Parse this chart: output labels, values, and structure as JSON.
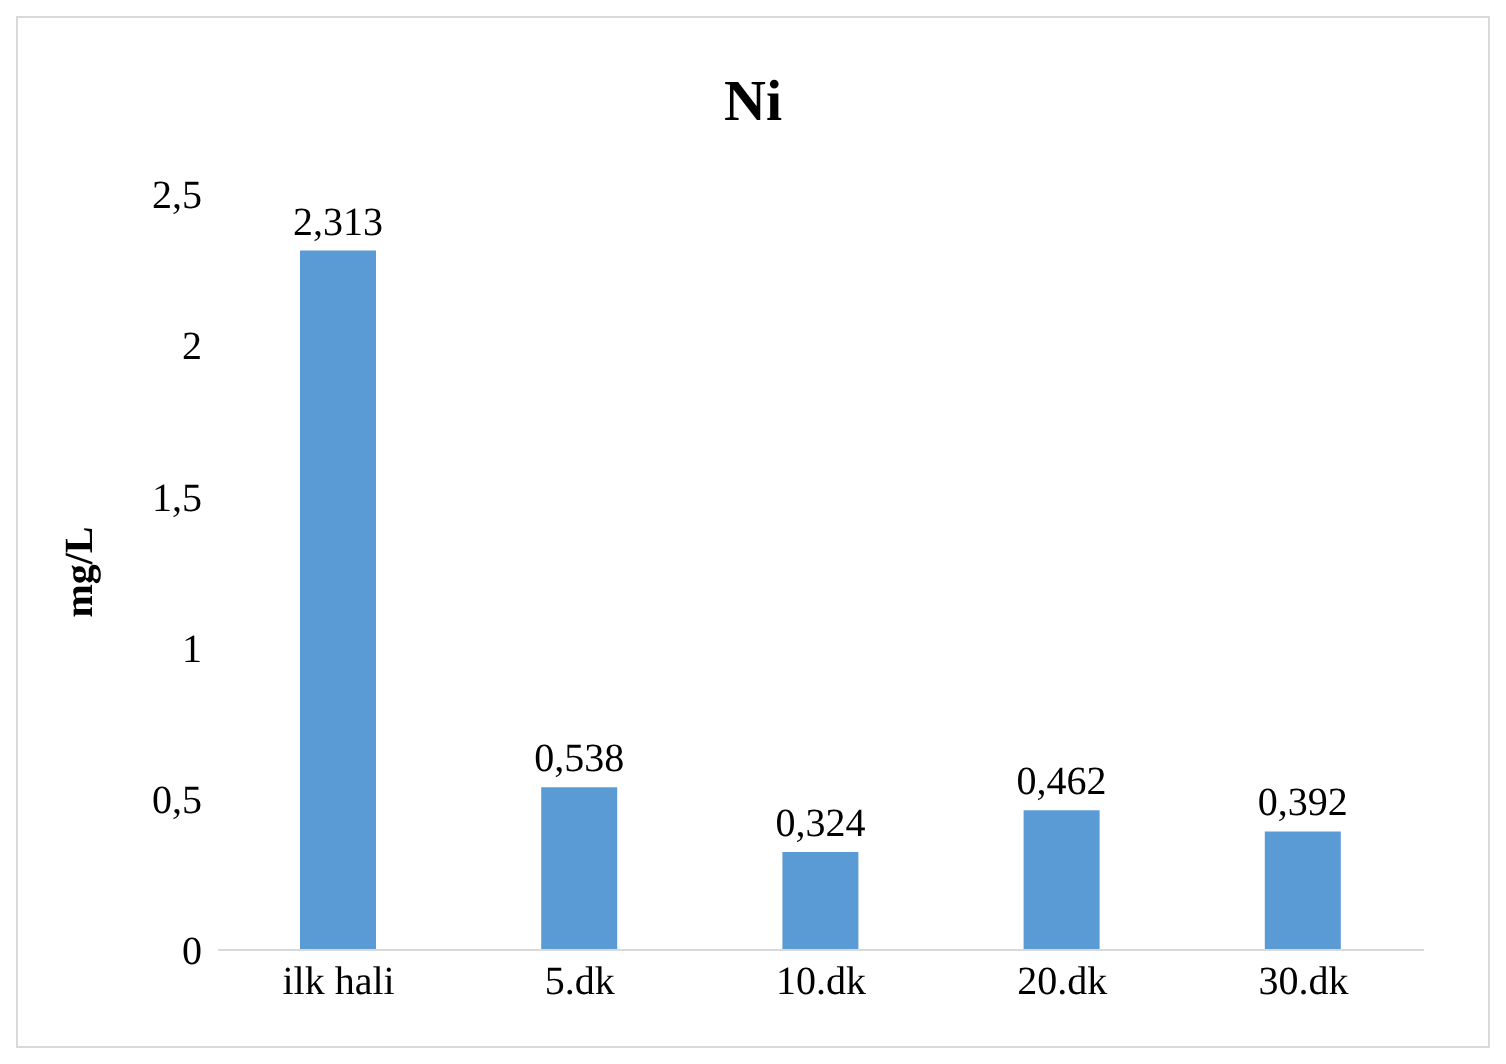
{
  "chart_data": {
    "type": "bar",
    "title": "Ni",
    "ylabel": "mg/L",
    "categories": [
      "ilk hali",
      "5.dk",
      "10.dk",
      "20.dk",
      "30.dk"
    ],
    "values": [
      2.313,
      0.538,
      0.324,
      0.462,
      0.392
    ],
    "value_labels": [
      "2,313",
      "0,538",
      "0,324",
      "0,462",
      "0,392"
    ],
    "color": "#5b9bd5",
    "ylim": [
      0,
      2.5
    ],
    "yticks": [
      {
        "value": 0,
        "label": "0"
      },
      {
        "value": 0.5,
        "label": "0,5"
      },
      {
        "value": 1,
        "label": "1"
      },
      {
        "value": 1.5,
        "label": "1,5"
      },
      {
        "value": 2,
        "label": "2"
      },
      {
        "value": 2.5,
        "label": "2,5"
      }
    ],
    "grid": false,
    "legend": false
  }
}
